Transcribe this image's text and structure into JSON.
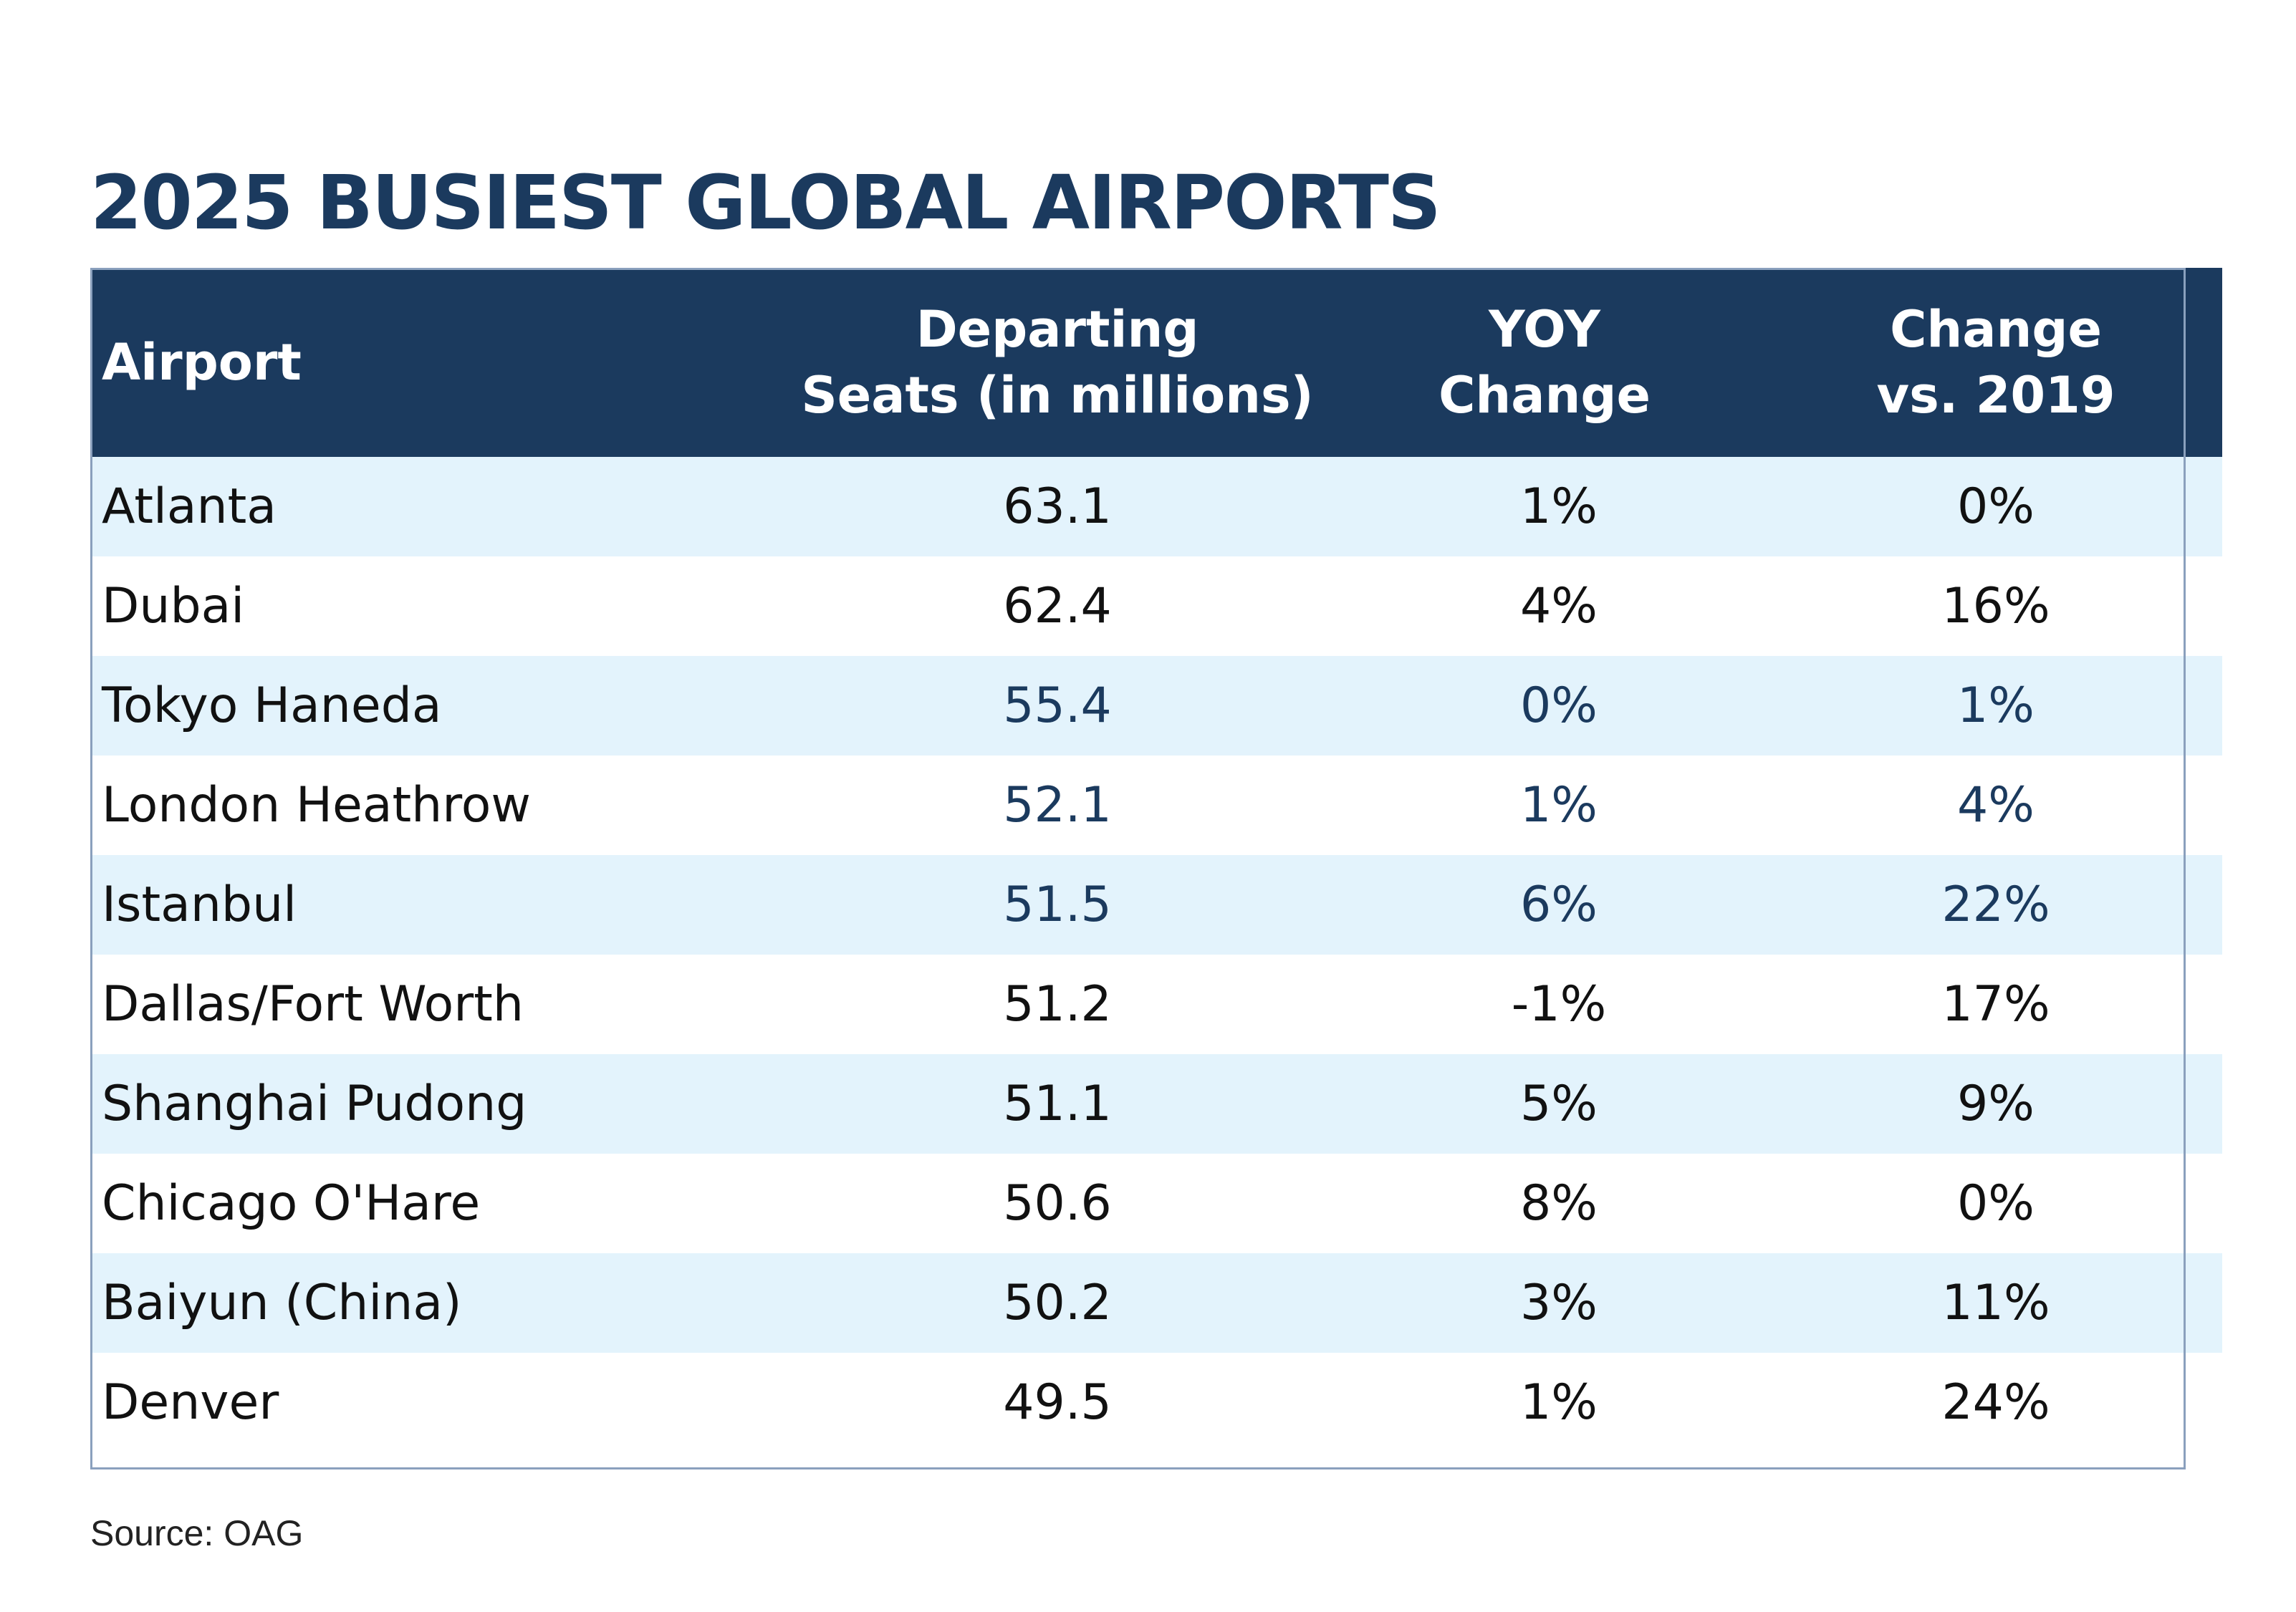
{
  "chart_data": {
    "type": "table",
    "title": "2025 BUSIEST GLOBAL AIRPORTS",
    "columns": [
      "Airport",
      "Departing\nSeats  (in millions)",
      "YOY\nChange",
      "Change\nvs. 2019"
    ],
    "rows": [
      {
        "airport": "Atlanta",
        "seats": "63.1",
        "yoy": "1%",
        "vs2019": "0%"
      },
      {
        "airport": "Dubai",
        "seats": "62.4",
        "yoy": "4%",
        "vs2019": "16%"
      },
      {
        "airport": "Tokyo Haneda",
        "seats": "55.4",
        "yoy": "0%",
        "vs2019": "1%"
      },
      {
        "airport": "London Heathrow",
        "seats": "52.1",
        "yoy": "1%",
        "vs2019": "4%"
      },
      {
        "airport": "Istanbul",
        "seats": "51.5",
        "yoy": "6%",
        "vs2019": "22%"
      },
      {
        "airport": "Dallas/Fort Worth",
        "seats": "51.2",
        "yoy": "-1%",
        "vs2019": "17%"
      },
      {
        "airport": "Shanghai Pudong",
        "seats": "51.1",
        "yoy": "5%",
        "vs2019": "9%"
      },
      {
        "airport": "Chicago O'Hare",
        "seats": "50.6",
        "yoy": "8%",
        "vs2019": "0%"
      },
      {
        "airport": "Baiyun (China)",
        "seats": "50.2",
        "yoy": "3%",
        "vs2019": "11%"
      },
      {
        "airport": "Denver",
        "seats": "49.5",
        "yoy": "1%",
        "vs2019": "24%"
      }
    ],
    "source": "Source: OAG"
  },
  "colors": {
    "header_bg": "#1b3a5e",
    "title": "#1b3a5e",
    "stripe": "#e3f3fc",
    "accent_value": "#1b3a5e",
    "text": "#111111"
  },
  "accent_rows": [
    2,
    3,
    4
  ]
}
